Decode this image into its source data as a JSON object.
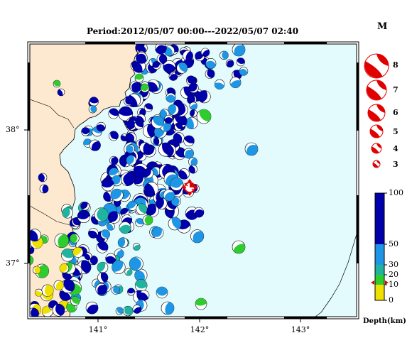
{
  "title": "Period:2012/05/07 00:00---2022/05/07 02:40",
  "axes": {
    "x_ticks": [
      "141°",
      "142°",
      "143°"
    ],
    "y_ticks": [
      "38°",
      "37°"
    ]
  },
  "magnitude_legend": {
    "title": "M",
    "labels": [
      "8",
      "7",
      "6",
      "5",
      "4",
      "3"
    ]
  },
  "depth_legend": {
    "title": "Depth(km)",
    "labels": [
      "100",
      "50",
      "30",
      "20",
      "10",
      "0"
    ],
    "colors": [
      "#0000aa",
      "#1e96e6",
      "#20b4a0",
      "#2ecc2e",
      "#f0e000"
    ]
  },
  "colors": {
    "land": "#fde9cf",
    "sea": "#e3fbfd",
    "highlight": "#e00000",
    "deep": "#0000aa",
    "mid": "#1e96e6",
    "teal": "#20b4a0",
    "green": "#2ecc2e",
    "shallow": "#f0e000"
  },
  "highlight_event": {
    "lon": 141.92,
    "lat": 37.57,
    "depth_km": 20,
    "label": "target event"
  }
}
